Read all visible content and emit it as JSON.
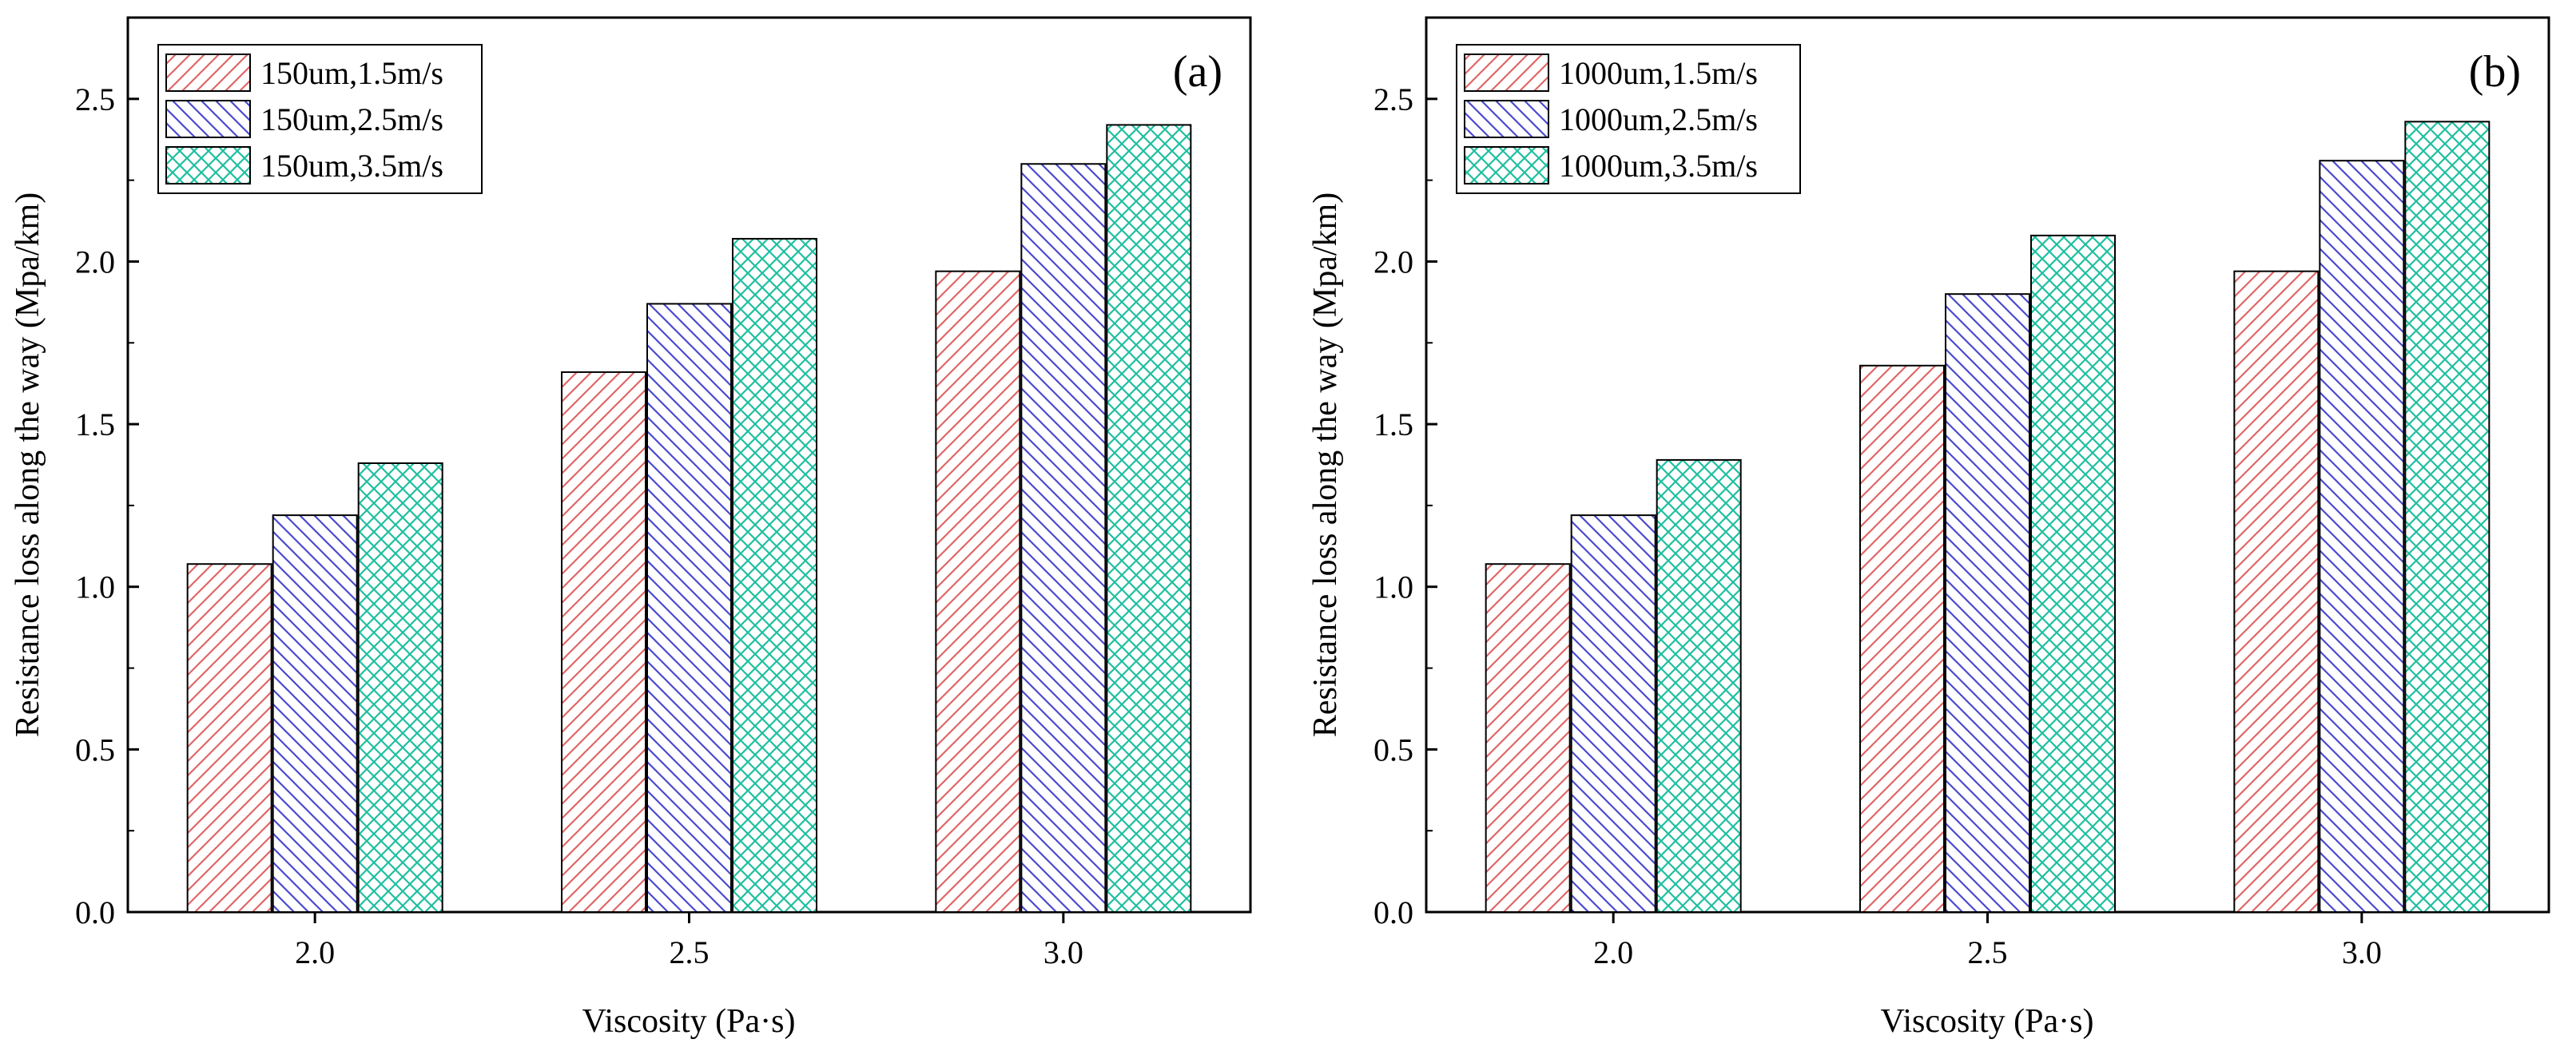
{
  "chart_data": [
    {
      "type": "bar",
      "panel_label": "(a)",
      "xlabel": "Viscosity (Pa·s)",
      "ylabel": "Resistance loss along the way (Mpa/km)",
      "categories": [
        "2.0",
        "2.5",
        "3.0"
      ],
      "ylim": [
        0,
        2.75
      ],
      "yticks": [
        "0.0",
        "0.5",
        "1.0",
        "1.5",
        "2.0",
        "2.5"
      ],
      "legend_position": "top-left",
      "series": [
        {
          "name": "150um,1.5m/s",
          "values": [
            1.07,
            1.66,
            1.97
          ],
          "color": "#e06666",
          "pattern": "diag-up"
        },
        {
          "name": "150um,2.5m/s",
          "values": [
            1.22,
            1.87,
            2.3
          ],
          "color": "#4a4ad0",
          "pattern": "diag-down"
        },
        {
          "name": "150um,3.5m/s",
          "values": [
            1.38,
            2.07,
            2.42
          ],
          "color": "#1fbfa0",
          "pattern": "crosshatch"
        }
      ]
    },
    {
      "type": "bar",
      "panel_label": "(b)",
      "xlabel": "Viscosity (Pa·s)",
      "ylabel": "Resistance loss along the way (Mpa/km)",
      "categories": [
        "2.0",
        "2.5",
        "3.0"
      ],
      "ylim": [
        0,
        2.75
      ],
      "yticks": [
        "0.0",
        "0.5",
        "1.0",
        "1.5",
        "2.0",
        "2.5"
      ],
      "legend_position": "top-left",
      "series": [
        {
          "name": "1000um,1.5m/s",
          "values": [
            1.07,
            1.68,
            1.97
          ],
          "color": "#e06666",
          "pattern": "diag-up"
        },
        {
          "name": "1000um,2.5m/s",
          "values": [
            1.22,
            1.9,
            2.31
          ],
          "color": "#4a4ad0",
          "pattern": "diag-down"
        },
        {
          "name": "1000um,3.5m/s",
          "values": [
            1.39,
            2.08,
            2.43
          ],
          "color": "#1fbfa0",
          "pattern": "crosshatch"
        }
      ]
    }
  ]
}
